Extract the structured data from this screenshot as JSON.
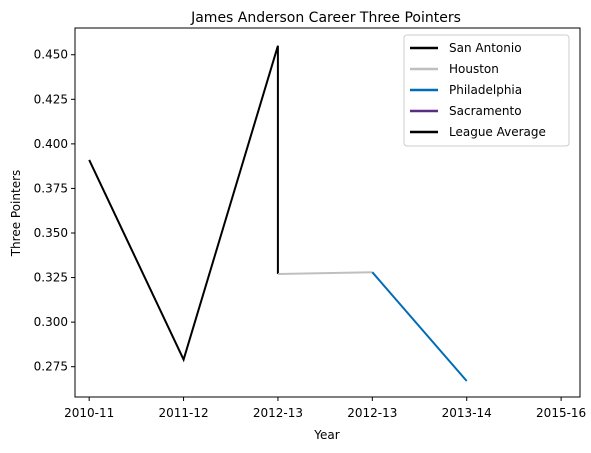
{
  "chart_data": {
    "type": "line",
    "title": "James Anderson  Career Three Pointers",
    "xlabel": "Year",
    "ylabel": "Three Pointers",
    "x_tick_labels": [
      "2010-11",
      "2011-12",
      "2012-13",
      "2012-13",
      "2013-14",
      "2015-16"
    ],
    "y_ticks": [
      0.275,
      0.3,
      0.325,
      0.35,
      0.375,
      0.4,
      0.425,
      0.45
    ],
    "y_tick_labels": [
      "0.275",
      "0.300",
      "0.325",
      "0.350",
      "0.375",
      "0.400",
      "0.425",
      "0.450"
    ],
    "xlim": [
      -0.15,
      5.2
    ],
    "ylim": [
      0.258,
      0.465
    ],
    "grid": false,
    "legend_position": "top-right",
    "series": [
      {
        "name": "San Antonio",
        "color": "#000000",
        "x": [
          0,
          1,
          2,
          2
        ],
        "values": [
          0.391,
          0.279,
          0.455,
          0.327
        ]
      },
      {
        "name": "Houston",
        "color": "#bfbfbf",
        "x": [
          2,
          3
        ],
        "values": [
          0.327,
          0.328
        ]
      },
      {
        "name": "Philadelphia",
        "color": "#006bb6",
        "x": [
          3,
          4
        ],
        "values": [
          0.328,
          0.267
        ]
      },
      {
        "name": "Sacramento",
        "color": "#5a2d81",
        "x": [],
        "values": []
      },
      {
        "name": "League Average",
        "color": "#000000",
        "x": [],
        "values": []
      }
    ]
  }
}
